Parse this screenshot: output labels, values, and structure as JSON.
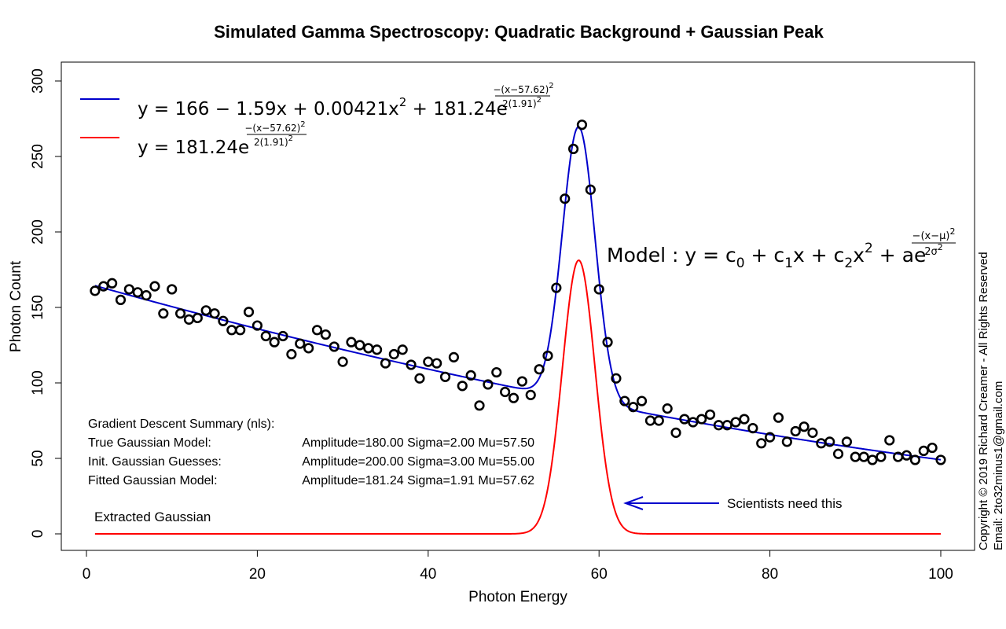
{
  "chart_data": {
    "type": "scatter",
    "title": "Simulated Gamma Spectroscopy: Quadratic Background + Gaussian Peak",
    "xlabel": "Photon Energy",
    "ylabel": "Photon Count",
    "xlim": [
      0,
      100
    ],
    "ylim": [
      0,
      300
    ],
    "x_ticks": [
      "0",
      "20",
      "40",
      "60",
      "80",
      "100"
    ],
    "y_ticks": [
      "0",
      "50",
      "100",
      "150",
      "200",
      "250",
      "300"
    ],
    "grid": false,
    "legend_placement": "top-left",
    "series": [
      {
        "kind": "points",
        "color": "#000000",
        "x": [
          1,
          2,
          3,
          4,
          5,
          6,
          7,
          8,
          9,
          10,
          11,
          12,
          13,
          14,
          15,
          16,
          17,
          18,
          19,
          20,
          21,
          22,
          23,
          24,
          25,
          26,
          27,
          28,
          29,
          30,
          31,
          32,
          33,
          34,
          35,
          36,
          37,
          38,
          39,
          40,
          41,
          42,
          43,
          44,
          45,
          46,
          47,
          48,
          49,
          50,
          51,
          52,
          53,
          54,
          55,
          56,
          57,
          58,
          59,
          60,
          61,
          62,
          63,
          64,
          65,
          66,
          67,
          68,
          69,
          70,
          71,
          72,
          73,
          74,
          75,
          76,
          77,
          78,
          79,
          80,
          81,
          82,
          83,
          84,
          85,
          86,
          87,
          88,
          89,
          90,
          91,
          92,
          93,
          94,
          95,
          96,
          97,
          98,
          99,
          100
        ],
        "y": [
          161,
          164,
          166,
          155,
          162,
          160,
          158,
          164,
          146,
          162,
          146,
          142,
          143,
          148,
          146,
          141,
          135,
          135,
          147,
          138,
          131,
          127,
          131,
          119,
          126,
          123,
          135,
          132,
          124,
          114,
          127,
          125,
          123,
          122,
          113,
          119,
          122,
          112,
          103,
          114,
          113,
          104,
          117,
          98,
          105,
          85,
          99,
          107,
          94,
          90,
          101,
          92,
          109,
          118,
          163,
          222,
          255,
          271,
          228,
          162,
          127,
          103,
          88,
          84,
          88,
          75,
          75,
          83,
          67,
          76,
          74,
          76,
          79,
          72,
          72,
          74,
          76,
          70,
          60,
          64,
          77,
          61,
          68,
          71,
          67,
          60,
          61,
          53,
          61,
          51,
          51,
          49,
          51,
          62,
          51,
          52,
          49,
          55,
          57,
          49
        ]
      },
      {
        "kind": "line",
        "color": "#0000CC",
        "equation": "full-model",
        "params": {
          "c0": 166,
          "c1": -1.59,
          "c2": 0.00421,
          "a": 181.24,
          "mu": 57.62,
          "sigma": 1.91
        }
      },
      {
        "kind": "line",
        "color": "#FF0000",
        "equation": "gaussian",
        "params": {
          "a": 181.24,
          "mu": 57.62,
          "sigma": 1.91
        }
      }
    ],
    "legend": {
      "blue_prefix": "y = 166 − 1.59x + 0.00421x",
      "blue_sq": "2",
      "blue_mid": " + 181.24e",
      "red_prefix": "y = 181.24e",
      "exp_num": "−(x−57.62)",
      "exp_num_sq": "2",
      "exp_den": "2(1.91)",
      "exp_den_sq": "2"
    },
    "model_text": {
      "lead": "Model : y = c",
      "s0": "0",
      "p1": " + c",
      "s1": "1",
      "p2": "x + c",
      "s2": "2",
      "p3": "x",
      "sq": "2",
      "p4": " + ae",
      "exp_num": "−(x−μ)",
      "exp_num_sq": "2",
      "exp_den": "2σ",
      "exp_den_sq": "2"
    },
    "summary": {
      "heading": "Gradient Descent Summary (nls):",
      "true_label": "True Gaussian Model:",
      "true_values": "Amplitude=180.00 Sigma=2.00 Mu=57.50",
      "init_label": "Init. Gaussian Guesses:",
      "init_values": "Amplitude=200.00 Sigma=3.00 Mu=55.00",
      "fit_label": "Fitted Gaussian Model:",
      "fit_values": "Amplitude=181.24 Sigma=1.91 Mu=57.62"
    },
    "annotations": {
      "extracted": "Extracted Gaussian",
      "scientists": "Scientists need this",
      "copyright": "Copyright © 2019 Richard Creamer - All Rights Reserved",
      "email": "Email: 2to32minus1@gmail.com"
    }
  }
}
